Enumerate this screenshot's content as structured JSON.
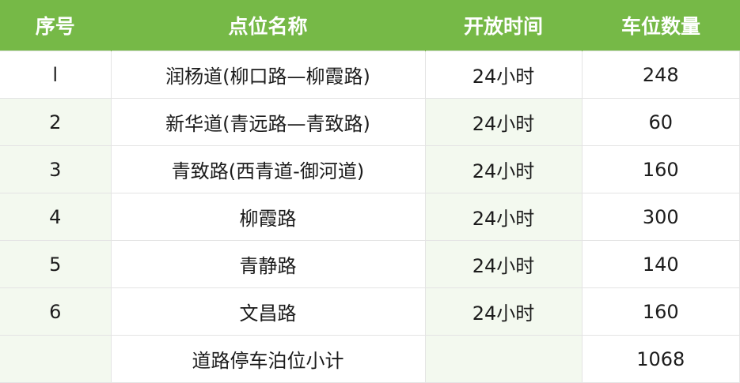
{
  "table": {
    "headers": [
      "序号",
      "点位名称",
      "开放时间",
      "车位数量"
    ],
    "rows": [
      [
        "l",
        "润杨道(柳口路—柳霞路)",
        "24小时",
        "248"
      ],
      [
        "2",
        "新华道(青远路—青致路)",
        "24小时",
        "60"
      ],
      [
        "3",
        "青致路(西青道-御河道)",
        "24小时",
        "160"
      ],
      [
        "4",
        "柳霞路",
        "24小时",
        "300"
      ],
      [
        "5",
        "青静路",
        "24小时",
        "140"
      ],
      [
        "6",
        "文昌路",
        "24小时",
        "160"
      ],
      [
        "",
        "道路停车泊位小计",
        "",
        "1068"
      ]
    ]
  },
  "colors": {
    "header_bg": "#76b947",
    "header_text": "#ffffff",
    "tint": "#f3f9ef"
  }
}
